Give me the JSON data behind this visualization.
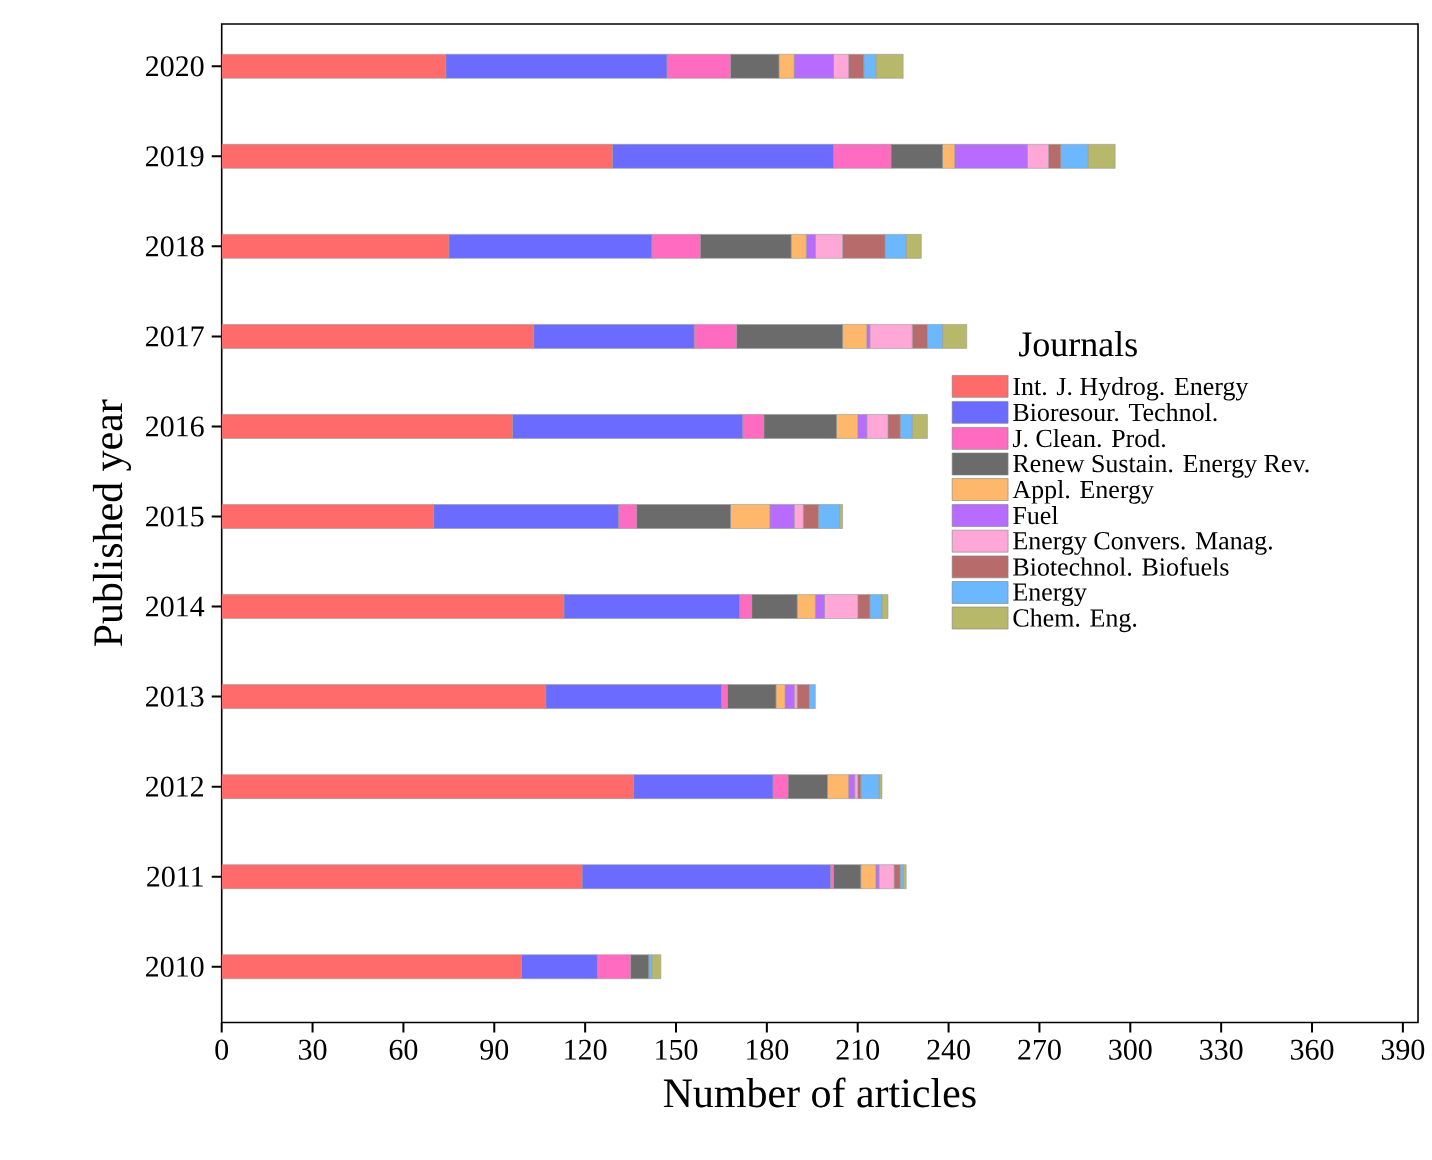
{
  "chart_data": {
    "type": "bar",
    "orientation": "horizontal",
    "stacked": true,
    "xlabel": "Number of articles",
    "ylabel": "Published year",
    "legend_title": "Journals",
    "legend": "right",
    "grid": false,
    "categories": [
      "2020",
      "2019",
      "2018",
      "2017",
      "2016",
      "2015",
      "2014",
      "2013",
      "2012",
      "2011",
      "2010"
    ],
    "xlim": [
      0,
      395
    ],
    "xticks": [
      0,
      30,
      60,
      90,
      120,
      150,
      180,
      210,
      240,
      270,
      300,
      330,
      360,
      390
    ],
    "series": [
      {
        "name": "Int. J. Hydrog. Energy",
        "color": "#ff6b6b",
        "values": [
          74,
          129,
          75,
          103,
          96,
          70,
          113,
          107,
          136,
          119,
          99
        ]
      },
      {
        "name": "Bioresour. Technol.",
        "color": "#6b6bff",
        "values": [
          73,
          73,
          67,
          53,
          76,
          61,
          58,
          58,
          46,
          82,
          25
        ]
      },
      {
        "name": "J. Clean. Prod.",
        "color": "#ff6bc0",
        "values": [
          21,
          19,
          16,
          14,
          7,
          6,
          4,
          2,
          5,
          1,
          11
        ]
      },
      {
        "name": "Renew Sustain. Energy Rev.",
        "color": "#6b6b6b",
        "values": [
          16,
          17,
          30,
          35,
          24,
          31,
          15,
          16,
          13,
          9,
          6
        ]
      },
      {
        "name": "Appl. Energy",
        "color": "#ffb86b",
        "values": [
          5,
          4,
          5,
          8,
          7,
          13,
          6,
          3,
          7,
          5,
          0
        ]
      },
      {
        "name": "Fuel",
        "color": "#b86bff",
        "values": [
          13,
          24,
          3,
          1,
          3,
          8,
          3,
          3,
          2,
          1,
          0
        ]
      },
      {
        "name": "Energy Convers. Manag.",
        "color": "#ffa8d8",
        "values": [
          5,
          7,
          9,
          14,
          7,
          3,
          11,
          1,
          1,
          5,
          0
        ]
      },
      {
        "name": "Biotechnol. Biofuels",
        "color": "#b86b6b",
        "values": [
          5,
          4,
          14,
          5,
          4,
          5,
          4,
          4,
          1,
          2,
          0
        ]
      },
      {
        "name": "Energy",
        "color": "#6bb8ff",
        "values": [
          4,
          9,
          7,
          5,
          4,
          7,
          4,
          2,
          6,
          1,
          1
        ]
      },
      {
        "name": "Chem. Eng.",
        "color": "#b8b86b",
        "values": [
          9,
          9,
          5,
          8,
          5,
          1,
          2,
          0,
          1,
          1,
          3
        ]
      }
    ]
  }
}
